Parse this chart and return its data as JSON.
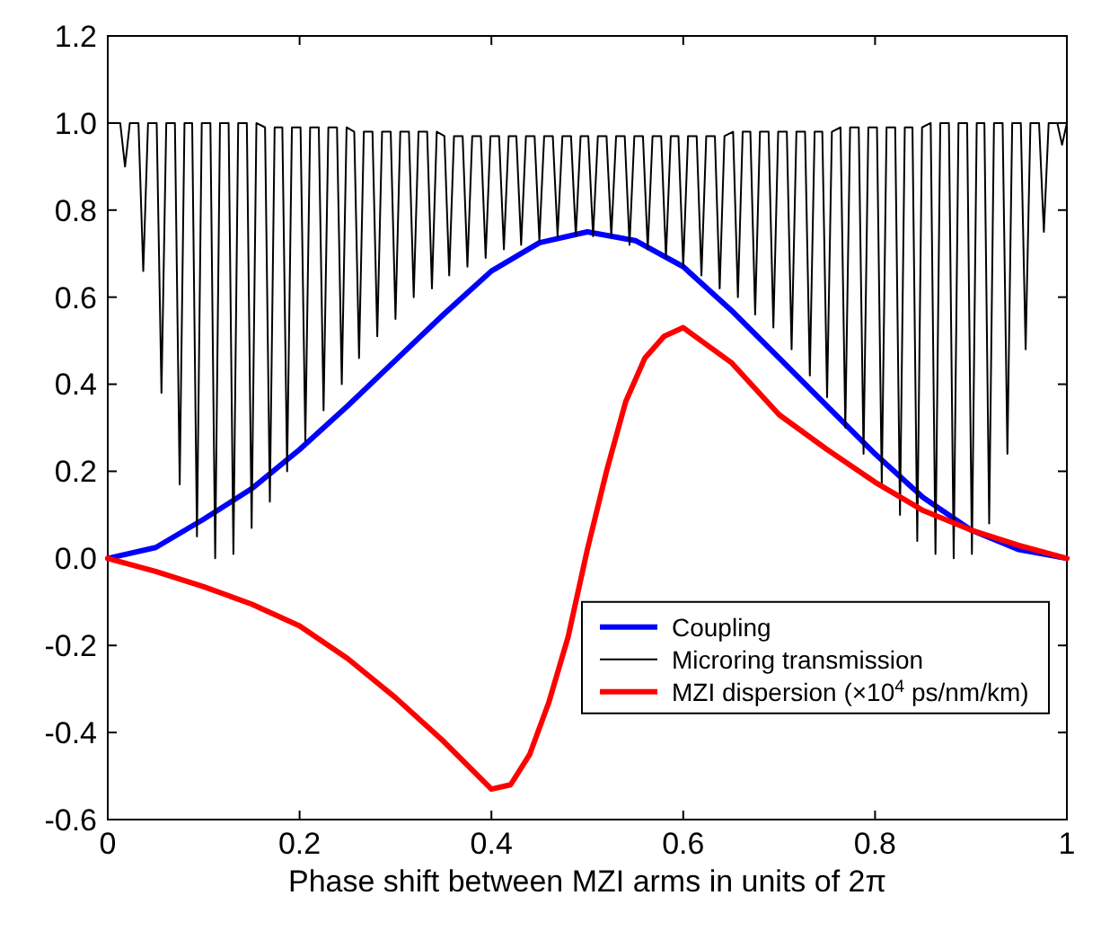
{
  "chart_data": {
    "type": "line",
    "xlabel": "Phase shift between MZI arms in units of 2π",
    "xlim": [
      0,
      1
    ],
    "ylim": [
      -0.6,
      1.2
    ],
    "xticks": [
      0,
      0.2,
      0.4,
      0.6,
      0.8,
      1
    ],
    "yticks": [
      {
        "value": -0.6,
        "label": "-0.6"
      },
      {
        "value": -0.4,
        "label": "-0.4"
      },
      {
        "value": -0.2,
        "label": "-0.2"
      },
      {
        "value": 0,
        "label": "0.0"
      },
      {
        "value": 0.2,
        "label": "0.2"
      },
      {
        "value": 0.4,
        "label": "0.4"
      },
      {
        "value": 0.6,
        "label": "0.6"
      },
      {
        "value": 0.8,
        "label": "0.8"
      },
      {
        "value": 1,
        "label": "1.0"
      },
      {
        "value": 1.2,
        "label": "1.2"
      }
    ],
    "grid": false,
    "legend": "bottom right",
    "marker": "none",
    "line_style": "solid",
    "series": [
      {
        "name": "Coupling",
        "color": "#0000ff",
        "x": [
          0,
          0.05,
          0.1,
          0.15,
          0.2,
          0.25,
          0.3,
          0.35,
          0.4,
          0.45,
          0.5,
          0.55,
          0.6,
          0.65,
          0.7,
          0.75,
          0.8,
          0.85,
          0.9,
          0.95,
          1
        ],
        "values": [
          0,
          0.025,
          0.09,
          0.16,
          0.25,
          0.35,
          0.455,
          0.56,
          0.66,
          0.725,
          0.75,
          0.73,
          0.67,
          0.57,
          0.46,
          0.35,
          0.24,
          0.14,
          0.065,
          0.02,
          0
        ]
      },
      {
        "name": "Microring transmission",
        "color": "#000000",
        "x": [
          0,
          0.013,
          0.018,
          0.023,
          0.032,
          0.037,
          0.042,
          0.051,
          0.056,
          0.061,
          0.07,
          0.075,
          0.08,
          0.088,
          0.093,
          0.098,
          0.107,
          0.112,
          0.117,
          0.126,
          0.131,
          0.136,
          0.145,
          0.15,
          0.155,
          0.164,
          0.169,
          0.174,
          0.182,
          0.187,
          0.192,
          0.201,
          0.206,
          0.211,
          0.22,
          0.225,
          0.23,
          0.239,
          0.244,
          0.249,
          0.257,
          0.262,
          0.267,
          0.276,
          0.281,
          0.286,
          0.295,
          0.3,
          0.305,
          0.314,
          0.319,
          0.324,
          0.333,
          0.338,
          0.343,
          0.351,
          0.356,
          0.361,
          0.37,
          0.375,
          0.38,
          0.389,
          0.394,
          0.399,
          0.408,
          0.413,
          0.418,
          0.426,
          0.431,
          0.436,
          0.445,
          0.45,
          0.455,
          0.464,
          0.469,
          0.474,
          0.483,
          0.488,
          0.493,
          0.501,
          0.506,
          0.511,
          0.52,
          0.525,
          0.53,
          0.539,
          0.544,
          0.549,
          0.558,
          0.563,
          0.568,
          0.577,
          0.582,
          0.587,
          0.595,
          0.6,
          0.605,
          0.614,
          0.619,
          0.624,
          0.633,
          0.638,
          0.643,
          0.652,
          0.657,
          0.662,
          0.67,
          0.675,
          0.68,
          0.689,
          0.694,
          0.699,
          0.708,
          0.713,
          0.718,
          0.727,
          0.732,
          0.737,
          0.745,
          0.75,
          0.755,
          0.764,
          0.769,
          0.774,
          0.783,
          0.788,
          0.793,
          0.802,
          0.807,
          0.812,
          0.821,
          0.826,
          0.831,
          0.839,
          0.844,
          0.849,
          0.858,
          0.863,
          0.868,
          0.877,
          0.882,
          0.887,
          0.896,
          0.901,
          0.906,
          0.914,
          0.919,
          0.924,
          0.933,
          0.938,
          0.943,
          0.952,
          0.957,
          0.962,
          0.971,
          0.976,
          0.981,
          0.99,
          0.995,
          1
        ],
        "values": [
          1,
          1,
          0.9,
          1,
          1,
          0.66,
          1,
          1,
          0.38,
          1,
          1,
          0.17,
          1,
          1,
          0.05,
          1,
          1,
          0,
          1,
          1,
          0.01,
          1,
          1,
          0.07,
          1,
          0.99,
          0.13,
          0.99,
          0.99,
          0.2,
          0.99,
          0.99,
          0.27,
          0.99,
          0.99,
          0.34,
          0.99,
          0.99,
          0.4,
          0.99,
          0.98,
          0.46,
          0.98,
          0.98,
          0.51,
          0.98,
          0.98,
          0.55,
          0.98,
          0.98,
          0.6,
          0.98,
          0.98,
          0.62,
          0.98,
          0.97,
          0.65,
          0.97,
          0.97,
          0.67,
          0.97,
          0.97,
          0.69,
          0.97,
          0.97,
          0.71,
          0.97,
          0.97,
          0.72,
          0.97,
          0.97,
          0.73,
          0.97,
          0.97,
          0.74,
          0.97,
          0.97,
          0.74,
          0.97,
          0.97,
          0.74,
          0.97,
          0.97,
          0.74,
          0.97,
          0.97,
          0.72,
          0.97,
          0.97,
          0.71,
          0.97,
          0.97,
          0.69,
          0.97,
          0.97,
          0.67,
          0.97,
          0.97,
          0.65,
          0.97,
          0.97,
          0.62,
          0.97,
          0.98,
          0.6,
          0.98,
          0.98,
          0.56,
          0.98,
          0.98,
          0.53,
          0.98,
          0.98,
          0.48,
          0.98,
          0.98,
          0.42,
          0.98,
          0.98,
          0.37,
          0.98,
          0.99,
          0.3,
          0.99,
          0.99,
          0.24,
          0.99,
          0.99,
          0.17,
          0.99,
          0.99,
          0.1,
          0.99,
          0.99,
          0.04,
          0.99,
          1,
          0.01,
          1,
          1,
          0,
          1,
          1,
          0.01,
          1,
          1,
          0.08,
          1,
          1,
          0.24,
          1,
          1,
          0.48,
          1,
          1,
          0.75,
          1,
          1,
          0.95,
          1
        ]
      },
      {
        "name": "MZI dispersion (×10$^{4}$ ps/nm/km)",
        "color": "#ff0000",
        "x": [
          0,
          0.05,
          0.1,
          0.15,
          0.2,
          0.25,
          0.3,
          0.35,
          0.4,
          0.42,
          0.44,
          0.46,
          0.48,
          0.5,
          0.52,
          0.54,
          0.56,
          0.58,
          0.6,
          0.65,
          0.7,
          0.75,
          0.8,
          0.85,
          0.9,
          0.95,
          1
        ],
        "values": [
          0,
          -0.03,
          -0.065,
          -0.105,
          -0.155,
          -0.23,
          -0.32,
          -0.42,
          -0.53,
          -0.52,
          -0.45,
          -0.33,
          -0.18,
          0.02,
          0.2,
          0.36,
          0.46,
          0.51,
          0.53,
          0.45,
          0.33,
          0.25,
          0.175,
          0.11,
          0.065,
          0.03,
          0
        ]
      }
    ]
  }
}
